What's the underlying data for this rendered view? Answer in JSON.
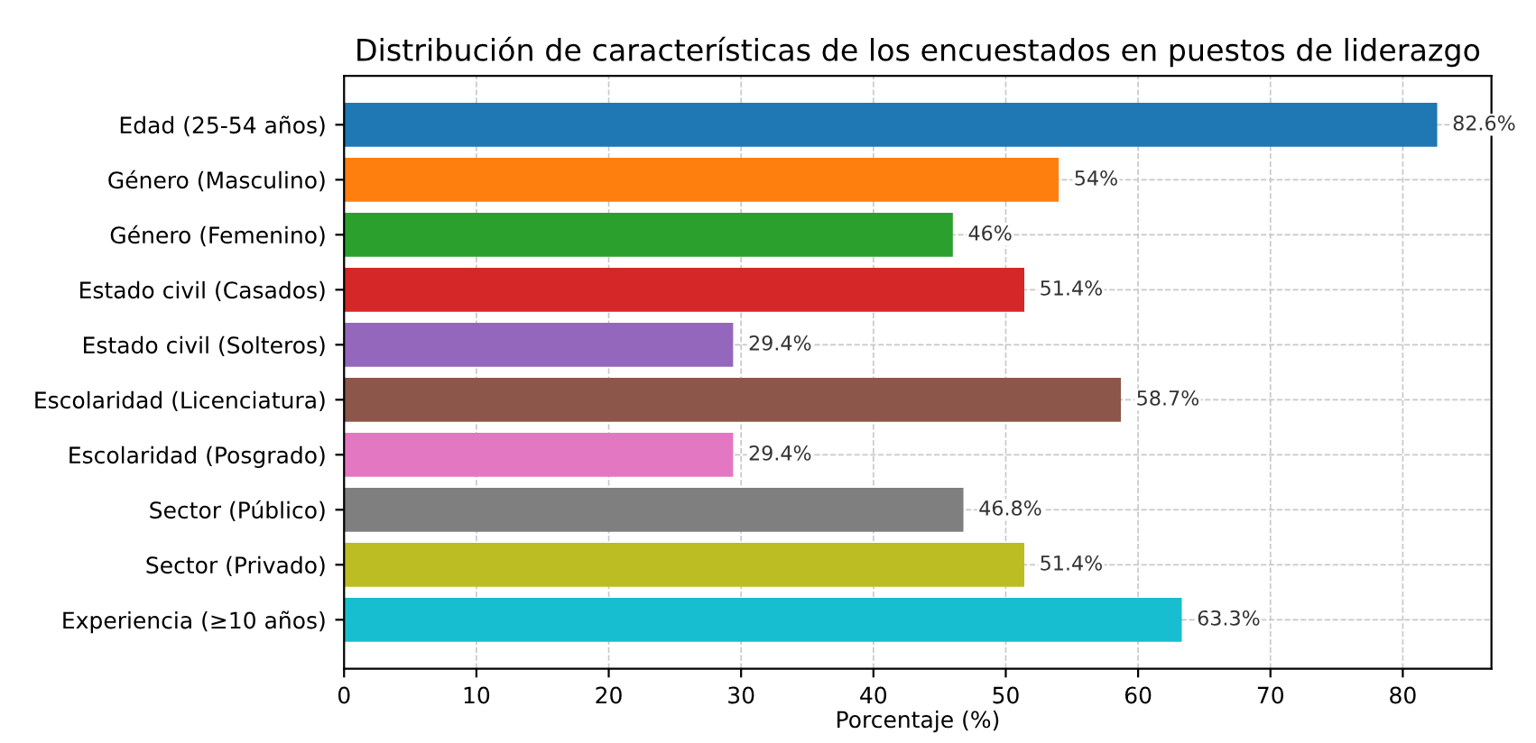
{
  "chart_data": {
    "type": "bar",
    "orientation": "horizontal",
    "title": "Distribución de características de los encuestados en puestos de liderazgo",
    "xlabel": "Porcentaje (%)",
    "categories": [
      "Edad (25-54 años)",
      "Género (Masculino)",
      "Género (Femenino)",
      "Estado civil (Casados)",
      "Estado civil (Solteros)",
      "Escolaridad (Licenciatura)",
      "Escolaridad (Posgrado)",
      "Sector (Público)",
      "Sector (Privado)",
      "Experiencia (≥10 años)"
    ],
    "values": [
      82.6,
      54,
      46,
      51.4,
      29.4,
      58.7,
      29.4,
      46.8,
      51.4,
      63.3
    ],
    "value_labels": [
      "82.6%",
      "54%",
      "46%",
      "51.4%",
      "29.4%",
      "58.7%",
      "29.4%",
      "46.8%",
      "51.4%",
      "63.3%"
    ],
    "colors": [
      "#1f77b4",
      "#ff7f0e",
      "#2ca02c",
      "#d62728",
      "#9467bd",
      "#8c564b",
      "#e377c2",
      "#7f7f7f",
      "#bcbd22",
      "#17becf"
    ],
    "xlim": [
      0,
      86.7
    ],
    "xticks": [
      0,
      10,
      20,
      30,
      40,
      50,
      60,
      70,
      80
    ],
    "grid": true,
    "line_style": "dashed"
  }
}
